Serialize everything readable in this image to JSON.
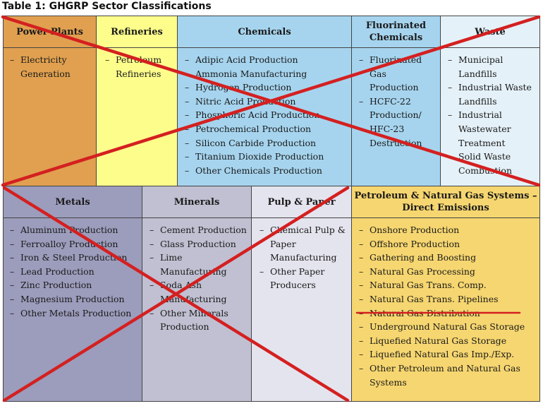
{
  "table_title": "Table 1: GHGRP Sector Classifications",
  "colors": {
    "power_plants": "#e0a050",
    "refineries": "#fdfd8c",
    "chemicals": "#a6d4ee",
    "fluorinated": "#a6d4ee",
    "waste": "#e4f1f8",
    "metals": "#9c9cbc",
    "minerals": "#c0c0d2",
    "pulp": "#e4e4ee",
    "petroleum": "#f6d670",
    "cross_line": "#d42020"
  },
  "sectors": {
    "power_plants": {
      "header": "Power Plants",
      "items": [
        "Electricity Generation"
      ]
    },
    "refineries": {
      "header": "Refineries",
      "items": [
        "Petroleum Refineries"
      ]
    },
    "chemicals": {
      "header": "Chemicals",
      "items": [
        "Adipic Acid Production",
        "Ammonia Manufacturing",
        "Hydrogen Production",
        "Nitric Acid Production",
        "Phosphoric Acid Production",
        "Petrochemical Production",
        "Silicon Carbide Production",
        "Titanium Dioxide Production",
        "Other Chemicals Production"
      ]
    },
    "fluorinated": {
      "header": "Fluorinated Chemicals",
      "items": [
        "Fluorinated Gas Production",
        "HCFC-22 Production/ HFC-23 Destruction"
      ]
    },
    "waste": {
      "header": "Waste",
      "items": [
        "Municipal Landfills",
        "Industrial Waste Landfills",
        "Industrial Wastewater Treatment",
        "Solid Waste Combustion"
      ]
    },
    "metals": {
      "header": "Metals",
      "items": [
        "Aluminum Production",
        "Ferroalloy Production",
        "Iron & Steel Production",
        "Lead Production",
        "Zinc Production",
        "Magnesium Production",
        "Other Metals Production"
      ]
    },
    "minerals": {
      "header": "Minerals",
      "items": [
        "Cement Production",
        "Glass Production",
        "Lime Manufacturing",
        "Soda Ash Manufacturing",
        "Other Minerals Production"
      ]
    },
    "pulp": {
      "header": "Pulp & Paper",
      "items": [
        "Chemical Pulp & Paper Manufacturing",
        "Other Paper Producers"
      ]
    },
    "petroleum": {
      "header": "Petroleum & Natural Gas Systems – Direct Emissions",
      "items": [
        "Onshore Production",
        "Offshore Production",
        "Gathering and Boosting",
        "Natural Gas Processing",
        "Natural Gas Trans. Comp.",
        "Natural Gas Trans. Pipelines",
        "Natural Gas Distribution",
        "Underground Natural Gas Storage",
        "Liquefied Natural Gas Storage",
        "Liquefied Natural Gas Imp./Exp.",
        "Other Petroleum and Natural Gas Systems"
      ]
    }
  }
}
